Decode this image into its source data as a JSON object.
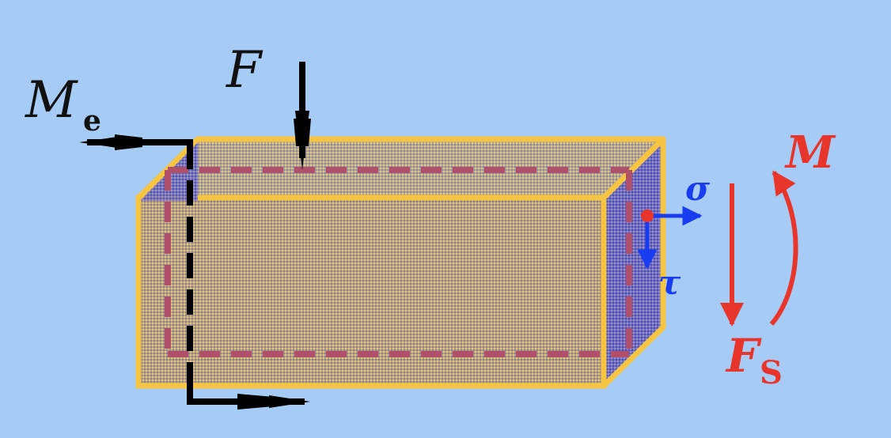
{
  "diagram": {
    "labels": {
      "Me_main": "M",
      "Me_sub": "e",
      "F": "F",
      "M": "M",
      "sigma": "σ",
      "tau": "τ",
      "Fs_main": "F",
      "Fs_sub": "S"
    },
    "colors": {
      "background": "#a6cbf5",
      "beam_outline": "#f5c542",
      "beam_front": "#c9ad7a",
      "beam_side": "#6f6fc8",
      "section_dash": "#b0506a",
      "internal_force": "#e8352b",
      "stress": "#1a3cf0",
      "load": "#000000"
    }
  }
}
